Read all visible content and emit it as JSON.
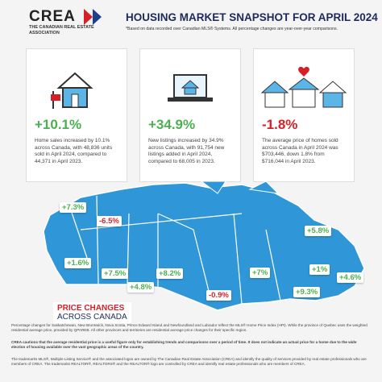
{
  "header": {
    "logo": "CREA",
    "logo_subtitle": "THE CANADIAN REAL ESTATE ASSOCIATION",
    "title": "HOUSING MARKET SNAPSHOT FOR APRIL 2024",
    "subtitle": "*Based on data recorded over Canadian MLS® Systems. All percentage changes are year-over-year comparisons."
  },
  "cards": [
    {
      "change": "+10.1%",
      "text": "Home sales increased by 10.1% across Canada, with 48,836 units sold in April 2024, compared to 44,371 in April 2023."
    },
    {
      "change": "+34.9%",
      "text": "New listings increased by 34.9% across Canada, with 91,754 new listings added in April 2024, compared to 68,005 in 2023."
    },
    {
      "change": "-1.8%",
      "text": "The average price of homes sold across Canada in April 2024 was $703,446, down 1.8% from $716,044 in April 2023."
    }
  ],
  "map": {
    "labels": [
      "+7.3%",
      "-6.5%",
      "+1.6%",
      "+7.5%",
      "+4.8%",
      "+8.2%",
      "-0.9%",
      "+7%",
      "+5.8%",
      "+1%",
      "+4.6%",
      "+9.3%"
    ],
    "caption_line1": "PRICE CHANGES",
    "caption_line2": "ACROSS CANADA"
  },
  "footer": {
    "notes": [
      "Percentage changes for Saskatchewan, New Brunswick, Nova Scotia, Prince Edward Island and Newfoundland and Labrador reflect the MLS® Home Price Index (HPI). While the province of Quebec uses the weighted residential average price, provided by QPAREB. All other provinces and territories are residential average price changes for their specific region.",
      "CREA cautions that the average residential price is a useful figure only for establishing trends and comparisons over a period of time. It does not indicate an actual price for a home due to the wide election of housing available over the vast geographic areas of the country.",
      "The trademarks MLS®, Multiple Listing Service® and the associated logos are owned by The Canadian Real Estate Association (CREA) and identify the quality of services provided by real estate professionals who are members of CREA. The trademarks REALTOR®, REALTORS® and the REALTOR® logo are controlled by CREA and identify real estate professionals who are members of CREA."
    ]
  }
}
